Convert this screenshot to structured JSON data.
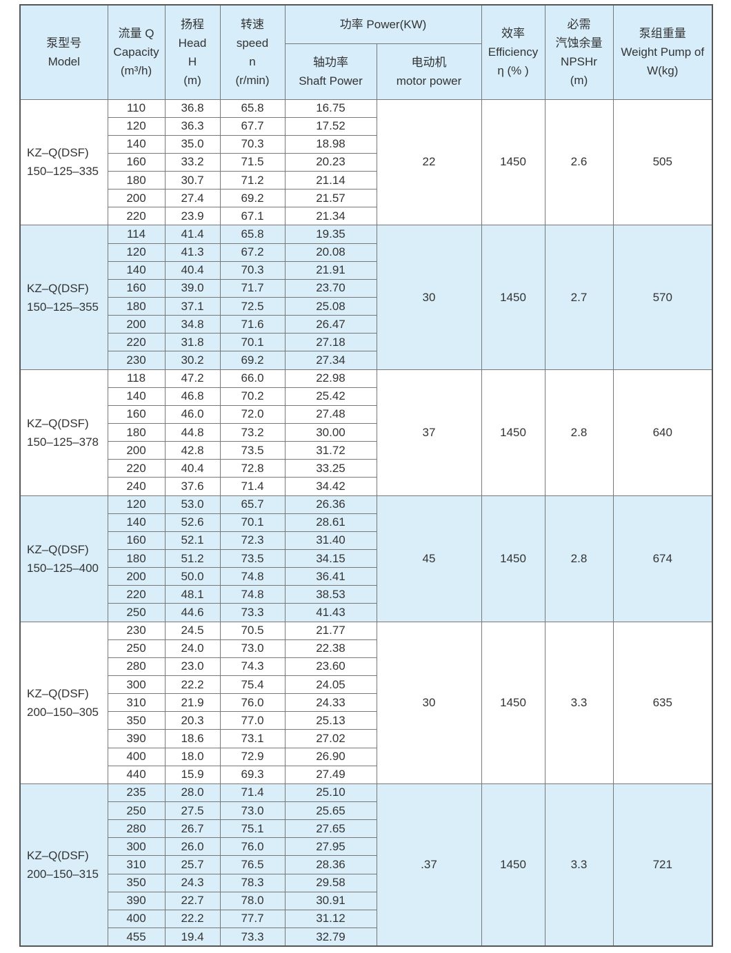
{
  "header": {
    "columns": [
      {
        "lines": [
          "泵型号",
          "Model"
        ]
      },
      {
        "lines": [
          "流量 Q",
          "Capacity",
          "(m³/h)"
        ]
      },
      {
        "lines": [
          "扬程",
          "Head",
          "H",
          "(m)"
        ]
      },
      {
        "lines": [
          "转速",
          "speed",
          "n",
          "(r/min)"
        ]
      },
      {
        "lines": [
          "效率",
          "Efficiency",
          "η (% )"
        ]
      },
      {
        "lines": [
          "必需",
          "汽蚀余量",
          "NPSHr",
          "(m)"
        ]
      },
      {
        "lines": [
          "泵组重量",
          "Weight Pump of",
          "W(kg)"
        ]
      }
    ],
    "power": {
      "title": "功率 Power(KW)",
      "sub": [
        {
          "lines": [
            "轴功率",
            "Shaft Power"
          ]
        },
        {
          "lines": [
            "电动机",
            "motor power"
          ]
        }
      ]
    }
  },
  "groups": [
    {
      "model": [
        "KZ–Q(DSF)",
        "150–125–335"
      ],
      "cells": [
        "22",
        "1450",
        "2.6",
        "505"
      ],
      "rows": [
        [
          "110",
          "36.8",
          "65.8",
          "16.75"
        ],
        [
          "120",
          "36.3",
          "67.7",
          "17.52"
        ],
        [
          "140",
          "35.0",
          "70.3",
          "18.98"
        ],
        [
          "160",
          "33.2",
          "71.5",
          "20.23"
        ],
        [
          "180",
          "30.7",
          "71.2",
          "21.14"
        ],
        [
          "200",
          "27.4",
          "69.2",
          "21.57"
        ],
        [
          "220",
          "23.9",
          "67.1",
          "21.34"
        ]
      ]
    },
    {
      "model": [
        "KZ–Q(DSF)",
        "150–125–355"
      ],
      "cells": [
        "30",
        "1450",
        "2.7",
        "570"
      ],
      "rows": [
        [
          "114",
          "41.4",
          "65.8",
          "19.35"
        ],
        [
          "120",
          "41.3",
          "67.2",
          "20.08"
        ],
        [
          "140",
          "40.4",
          "70.3",
          "21.91"
        ],
        [
          "160",
          "39.0",
          "71.7",
          "23.70"
        ],
        [
          "180",
          "37.1",
          "72.5",
          "25.08"
        ],
        [
          "200",
          "34.8",
          "71.6",
          "26.47"
        ],
        [
          "220",
          "31.8",
          "70.1",
          "27.18"
        ],
        [
          "230",
          "30.2",
          "69.2",
          "27.34"
        ]
      ]
    },
    {
      "model": [
        "KZ–Q(DSF)",
        "150–125–378"
      ],
      "cells": [
        "37",
        "1450",
        "2.8",
        "640"
      ],
      "rows": [
        [
          "118",
          "47.2",
          "66.0",
          "22.98"
        ],
        [
          "140",
          "46.8",
          "70.2",
          "25.42"
        ],
        [
          "160",
          "46.0",
          "72.0",
          "27.48"
        ],
        [
          "180",
          "44.8",
          "73.2",
          "30.00"
        ],
        [
          "200",
          "42.8",
          "73.5",
          "31.72"
        ],
        [
          "220",
          "40.4",
          "72.8",
          "33.25"
        ],
        [
          "240",
          "37.6",
          "71.4",
          "34.42"
        ]
      ]
    },
    {
      "model": [
        "KZ–Q(DSF)",
        "150–125–400"
      ],
      "cells": [
        "45",
        "1450",
        "2.8",
        "674"
      ],
      "rows": [
        [
          "120",
          "53.0",
          "65.7",
          "26.36"
        ],
        [
          "140",
          "52.6",
          "70.1",
          "28.61"
        ],
        [
          "160",
          "52.1",
          "72.3",
          "31.40"
        ],
        [
          "180",
          "51.2",
          "73.5",
          "34.15"
        ],
        [
          "200",
          "50.0",
          "74.8",
          "36.41"
        ],
        [
          "220",
          "48.1",
          "74.8",
          "38.53"
        ],
        [
          "250",
          "44.6",
          "73.3",
          "41.43"
        ]
      ]
    },
    {
      "model": [
        "KZ–Q(DSF)",
        "200–150–305"
      ],
      "cells": [
        "30",
        "1450",
        "3.3",
        "635"
      ],
      "rows": [
        [
          "230",
          "24.5",
          "70.5",
          "21.77"
        ],
        [
          "250",
          "24.0",
          "73.0",
          "22.38"
        ],
        [
          "280",
          "23.0",
          "74.3",
          "23.60"
        ],
        [
          "300",
          "22.2",
          "75.4",
          "24.05"
        ],
        [
          "310",
          "21.9",
          "76.0",
          "24.33"
        ],
        [
          "350",
          "20.3",
          "77.0",
          "25.13"
        ],
        [
          "390",
          "18.6",
          "73.1",
          "27.02"
        ],
        [
          "400",
          "18.0",
          "72.9",
          "26.90"
        ],
        [
          "440",
          "15.9",
          "69.3",
          "27.49"
        ]
      ]
    },
    {
      "model": [
        "KZ–Q(DSF)",
        "200–150–315"
      ],
      "cells": [
        ".37",
        "1450",
        "3.3",
        "721"
      ],
      "rows": [
        [
          "235",
          "28.0",
          "71.4",
          "25.10"
        ],
        [
          "250",
          "27.5",
          "73.0",
          "25.65"
        ],
        [
          "280",
          "26.7",
          "75.1",
          "27.65"
        ],
        [
          "300",
          "26.0",
          "76.0",
          "27.95"
        ],
        [
          "310",
          "25.7",
          "76.5",
          "28.36"
        ],
        [
          "350",
          "24.3",
          "78.3",
          "29.58"
        ],
        [
          "390",
          "22.7",
          "78.0",
          "30.91"
        ],
        [
          "400",
          "22.2",
          "77.7",
          "31.12"
        ],
        [
          "455",
          "19.4",
          "73.3",
          "32.79"
        ]
      ]
    }
  ]
}
